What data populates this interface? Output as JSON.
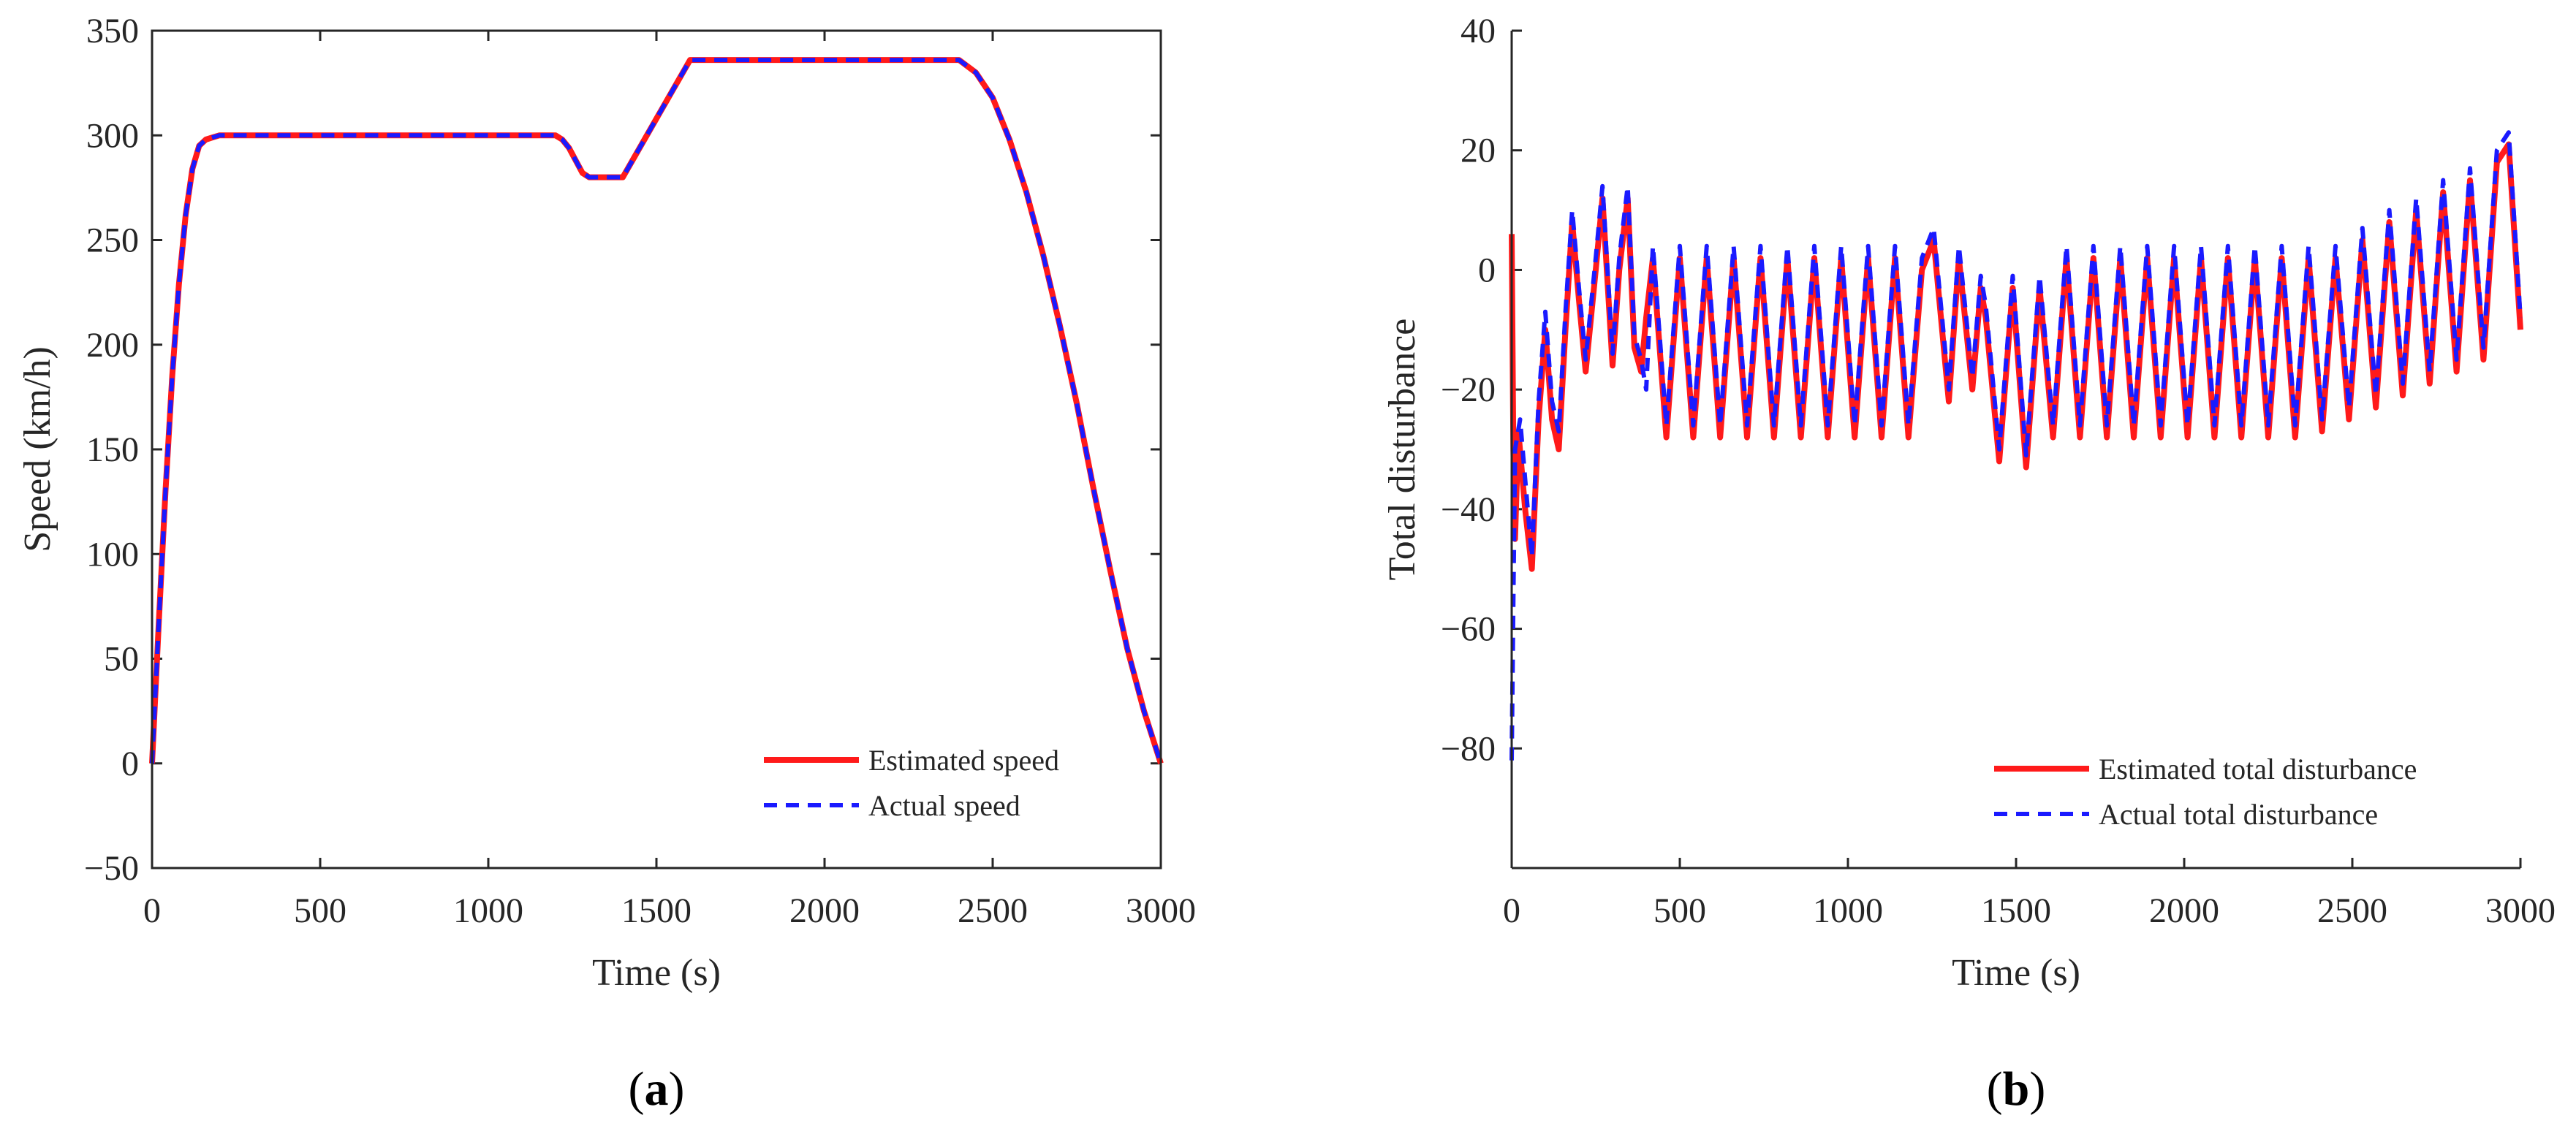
{
  "colors": {
    "estimated": "#ff1a1a",
    "actual": "#1a1aff",
    "axis": "#262626"
  },
  "chart_data": [
    {
      "id": "a",
      "type": "line",
      "panel_label_open": "(",
      "panel_label_letter": "a",
      "panel_label_close": ")",
      "xlabel": "Time (s)",
      "ylabel": "Speed (km/h)",
      "xlim": [
        0,
        3000
      ],
      "ylim": [
        -50,
        350
      ],
      "xticks": [
        0,
        500,
        1000,
        1500,
        2000,
        2500,
        3000
      ],
      "yticks": [
        -50,
        0,
        50,
        100,
        150,
        200,
        250,
        300,
        350
      ],
      "xtick_labels": [
        "0",
        "500",
        "1000",
        "1500",
        "2000",
        "2500",
        "3000"
      ],
      "ytick_labels": [
        "−50",
        "0",
        "50",
        "100",
        "150",
        "200",
        "250",
        "300",
        "350"
      ],
      "legend_position": "bottom-right",
      "series": [
        {
          "name": "Estimated speed",
          "style": "solid",
          "x": [
            0,
            20,
            40,
            60,
            80,
            100,
            120,
            140,
            160,
            180,
            200,
            1200,
            1220,
            1240,
            1260,
            1280,
            1300,
            1400,
            1600,
            2400,
            2450,
            2500,
            2550,
            2600,
            2650,
            2700,
            2750,
            2800,
            2850,
            2900,
            2950,
            3000
          ],
          "y": [
            0,
            67,
            130,
            185,
            229,
            262,
            284,
            295,
            298,
            299,
            300,
            300,
            298,
            294,
            288,
            282,
            280,
            280,
            336,
            336,
            330,
            318,
            298,
            273,
            243,
            209,
            172,
            131,
            92,
            55,
            25,
            0
          ]
        },
        {
          "name": "Actual speed",
          "style": "dashed",
          "x": [
            0,
            20,
            40,
            60,
            80,
            100,
            120,
            140,
            160,
            180,
            200,
            1200,
            1220,
            1240,
            1260,
            1280,
            1300,
            1400,
            1600,
            2400,
            2450,
            2500,
            2550,
            2600,
            2650,
            2700,
            2750,
            2800,
            2850,
            2900,
            2950,
            3000
          ],
          "y": [
            0,
            67,
            130,
            185,
            229,
            262,
            284,
            295,
            298,
            299,
            300,
            300,
            298,
            294,
            288,
            282,
            280,
            280,
            336,
            336,
            330,
            318,
            298,
            273,
            243,
            209,
            172,
            131,
            92,
            55,
            25,
            0
          ]
        }
      ]
    },
    {
      "id": "b",
      "type": "line",
      "panel_label_open": "(",
      "panel_label_letter": "b",
      "panel_label_close": ")",
      "xlabel": "Time (s)",
      "ylabel": "Total disturbance",
      "xlim": [
        0,
        3000
      ],
      "ylim": [
        -100,
        40
      ],
      "xticks": [
        0,
        500,
        1000,
        1500,
        2000,
        2500,
        3000
      ],
      "yticks": [
        -80,
        -60,
        -40,
        -20,
        0,
        20,
        40
      ],
      "xtick_labels": [
        "0",
        "500",
        "1000",
        "1500",
        "2000",
        "2500",
        "3000"
      ],
      "ytick_labels": [
        "−80",
        "−60",
        "−40",
        "−20",
        "0",
        "20",
        "40"
      ],
      "legend_position": "bottom-right",
      "series": [
        {
          "name": "Estimated total disturbance",
          "style": "solid",
          "x": [
            0,
            5,
            10,
            20,
            40,
            60,
            80,
            100,
            120,
            140,
            160,
            180,
            200,
            220,
            250,
            270,
            300,
            320,
            345,
            365,
            385,
            400,
            420,
            460,
            500,
            540,
            580,
            620,
            660,
            700,
            740,
            780,
            820,
            860,
            900,
            940,
            980,
            1020,
            1060,
            1100,
            1140,
            1180,
            1220,
            1255,
            1300,
            1330,
            1370,
            1395,
            1410,
            1450,
            1490,
            1530,
            1570,
            1610,
            1650,
            1690,
            1730,
            1770,
            1810,
            1850,
            1890,
            1930,
            1970,
            2010,
            2050,
            2090,
            2130,
            2170,
            2210,
            2250,
            2290,
            2330,
            2370,
            2410,
            2450,
            2490,
            2530,
            2570,
            2610,
            2650,
            2690,
            2730,
            2770,
            2810,
            2850,
            2890,
            2930,
            2965,
            3000
          ],
          "y": [
            6,
            -30,
            -45,
            -27,
            -40,
            -50,
            -25,
            -10,
            -25,
            -30,
            -10,
            8,
            -5,
            -17,
            0,
            12,
            -16,
            0,
            12,
            -13,
            -17,
            -8,
            2,
            -28,
            2,
            -28,
            2,
            -28,
            2,
            -28,
            2,
            -28,
            2,
            -28,
            2,
            -28,
            2,
            -28,
            2,
            -28,
            2,
            -28,
            0,
            5,
            -22,
            2,
            -20,
            -3,
            -8,
            -32,
            -3,
            -33,
            -3,
            -28,
            2,
            -28,
            2,
            -28,
            2,
            -28,
            2,
            -28,
            2,
            -28,
            2,
            -28,
            2,
            -28,
            2,
            -28,
            2,
            -28,
            2,
            -27,
            2,
            -25,
            5,
            -23,
            8,
            -21,
            10,
            -19,
            13,
            -17,
            15,
            -15,
            18,
            21,
            -10
          ]
        },
        {
          "name": "Actual total disturbance",
          "style": "dashed",
          "x": [
            0,
            5,
            10,
            25,
            40,
            60,
            80,
            100,
            120,
            140,
            160,
            180,
            200,
            220,
            250,
            270,
            300,
            320,
            345,
            365,
            385,
            400,
            420,
            460,
            500,
            540,
            580,
            620,
            660,
            700,
            740,
            780,
            820,
            860,
            900,
            940,
            980,
            1020,
            1060,
            1100,
            1140,
            1180,
            1220,
            1255,
            1300,
            1330,
            1370,
            1395,
            1410,
            1450,
            1490,
            1530,
            1570,
            1610,
            1650,
            1690,
            1730,
            1770,
            1810,
            1850,
            1890,
            1930,
            1970,
            2010,
            2050,
            2090,
            2130,
            2170,
            2210,
            2250,
            2290,
            2330,
            2370,
            2410,
            2450,
            2490,
            2530,
            2570,
            2610,
            2650,
            2690,
            2730,
            2770,
            2810,
            2850,
            2890,
            2930,
            2965,
            3000
          ],
          "y": [
            -82,
            -55,
            -30,
            -25,
            -35,
            -48,
            -22,
            -7,
            -22,
            -27,
            -7,
            10,
            -3,
            -15,
            2,
            14,
            -14,
            2,
            14,
            -11,
            -15,
            -20,
            4,
            -26,
            4,
            -26,
            4,
            -26,
            4,
            -26,
            4,
            -26,
            4,
            -26,
            4,
            -26,
            4,
            -26,
            4,
            -26,
            4,
            -26,
            2,
            7,
            -20,
            4,
            -18,
            -1,
            -6,
            -30,
            -1,
            -31,
            -1,
            -26,
            4,
            -26,
            4,
            -26,
            4,
            -26,
            4,
            -26,
            4,
            -26,
            4,
            -26,
            4,
            -26,
            4,
            -26,
            4,
            -26,
            4,
            -25,
            4,
            -23,
            7,
            -21,
            10,
            -19,
            12,
            -17,
            15,
            -15,
            17,
            -13,
            20,
            23,
            -8
          ]
        }
      ]
    }
  ]
}
